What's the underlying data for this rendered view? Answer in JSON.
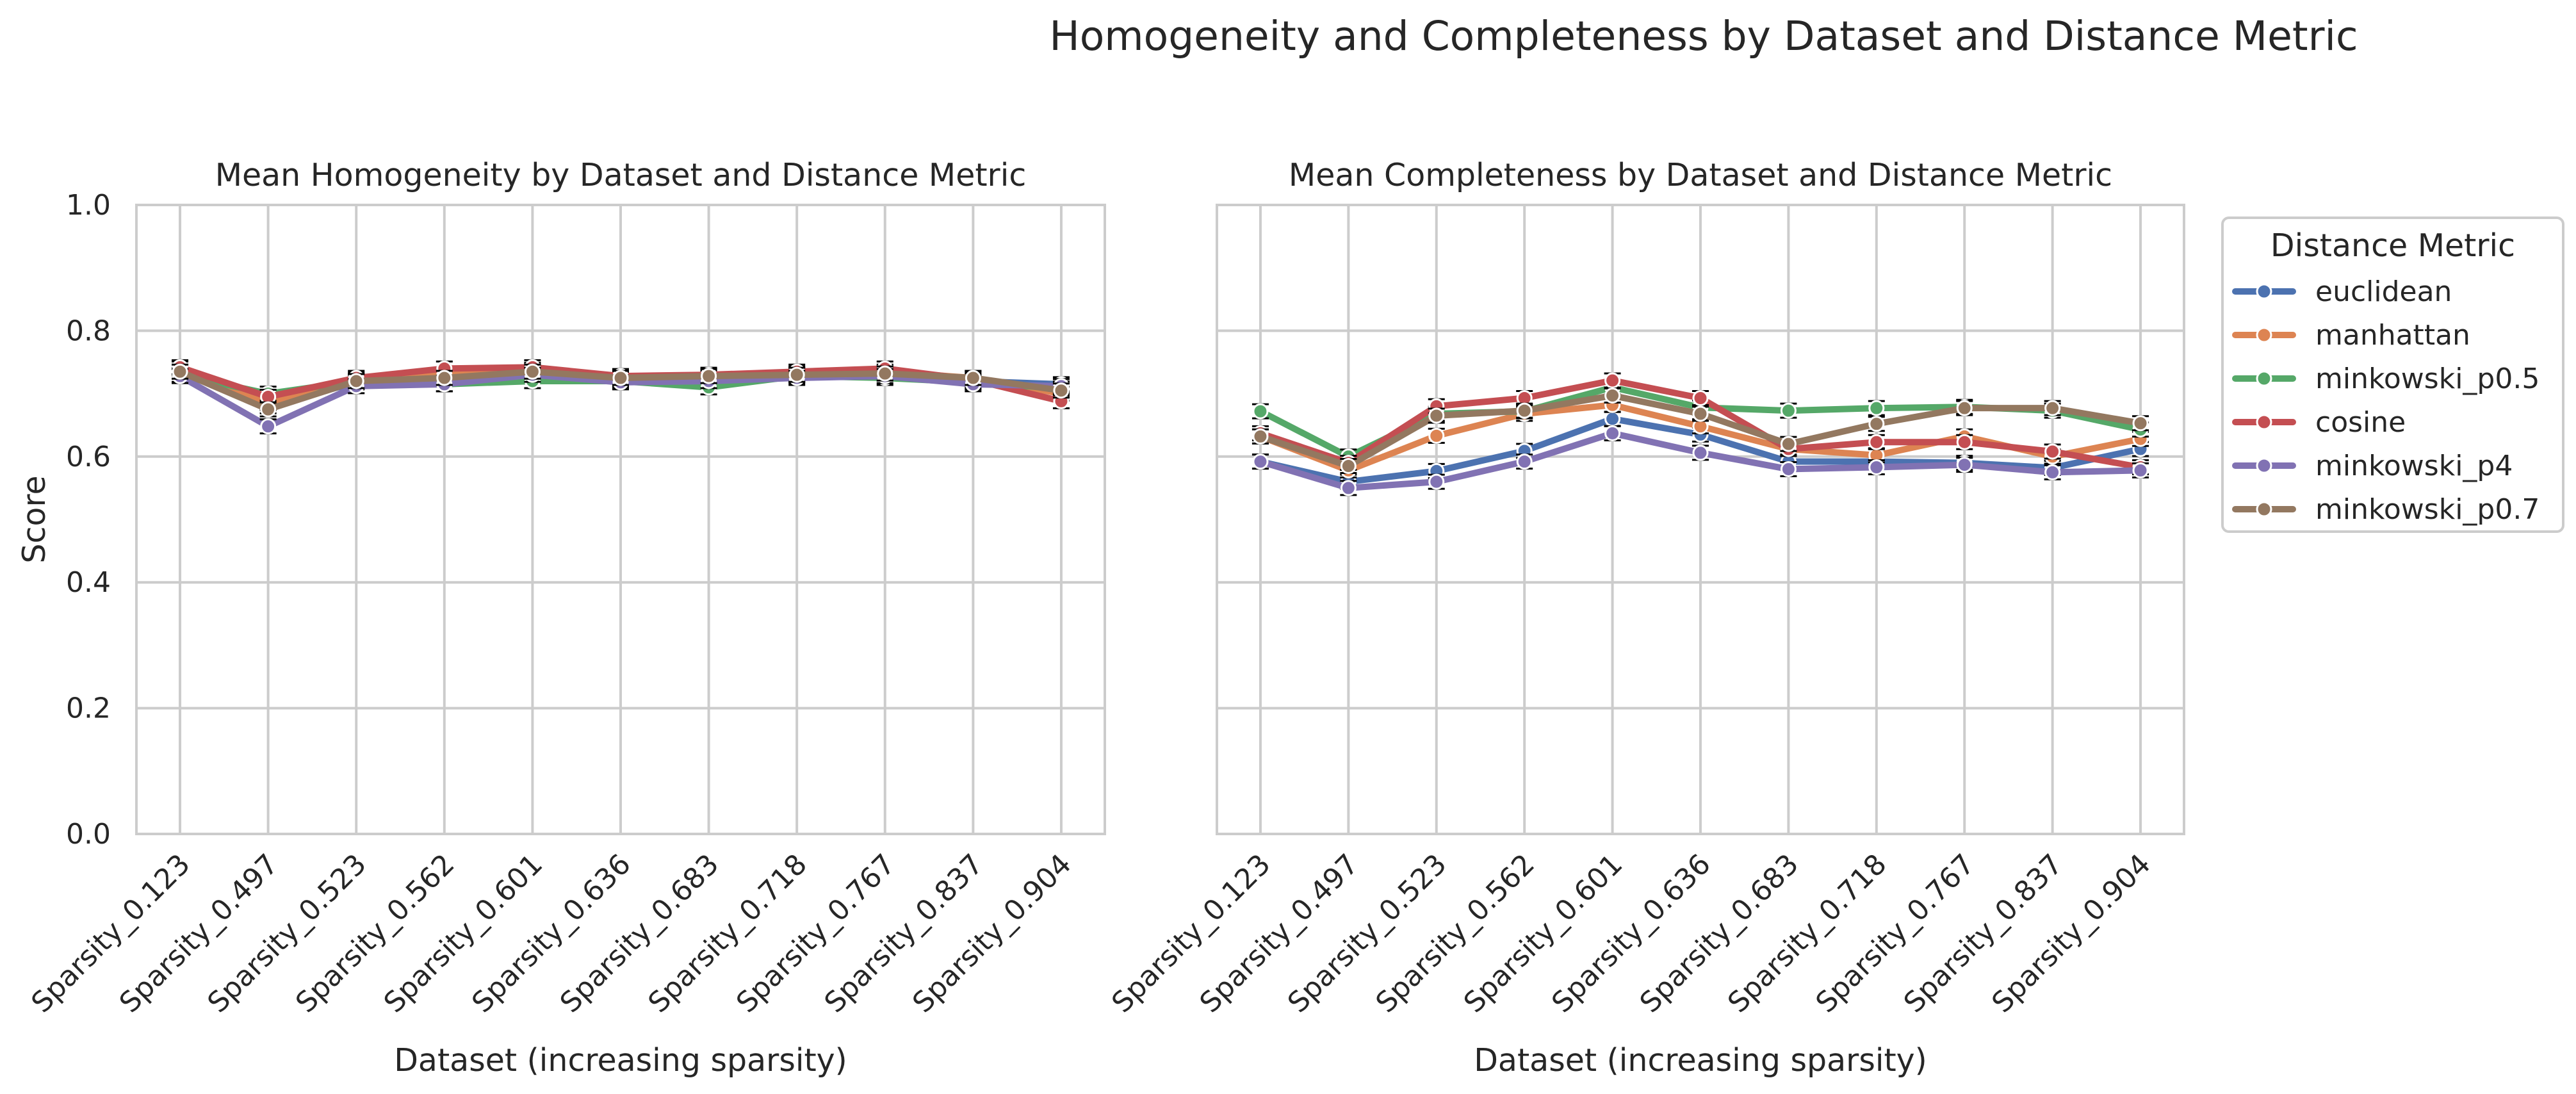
{
  "suptitle": "Homogeneity and Completeness by Dataset and Distance Metric",
  "colors": {
    "grid": "#cccccc",
    "frame": "#cccccc",
    "text": "#262626",
    "errorbar": "#000000"
  },
  "legend": {
    "title": "Distance Metric",
    "placement": "right, outside the second panel"
  },
  "chart_data": [
    {
      "type": "line",
      "title": "Mean Homogeneity by Dataset and Distance Metric",
      "xlabel": "Dataset (increasing sparsity)",
      "ylabel": "Score",
      "ylim": [
        0,
        1
      ],
      "yticks": [
        "0.0",
        "0.2",
        "0.4",
        "0.6",
        "0.8",
        "1.0"
      ],
      "grid": true,
      "categories": [
        "Sparsity_0.123",
        "Sparsity_0.497",
        "Sparsity_0.523",
        "Sparsity_0.562",
        "Sparsity_0.601",
        "Sparsity_0.636",
        "Sparsity_0.683",
        "Sparsity_0.718",
        "Sparsity_0.767",
        "Sparsity_0.837",
        "Sparsity_0.904"
      ],
      "series": [
        {
          "name": "euclidean",
          "color": "#4c72b0",
          "values": [
            0.735,
            0.68,
            0.718,
            0.725,
            0.735,
            0.722,
            0.725,
            0.73,
            0.732,
            0.72,
            0.715
          ]
        },
        {
          "name": "manhattan",
          "color": "#dd8452",
          "values": [
            0.74,
            0.685,
            0.722,
            0.73,
            0.738,
            0.725,
            0.728,
            0.732,
            0.735,
            0.725,
            0.7
          ]
        },
        {
          "name": "minkowski_p0.5",
          "color": "#55a868",
          "values": [
            0.73,
            0.7,
            0.72,
            0.715,
            0.72,
            0.72,
            0.71,
            0.728,
            0.725,
            0.718,
            0.708
          ]
        },
        {
          "name": "cosine",
          "color": "#c44e52",
          "values": [
            0.742,
            0.695,
            0.725,
            0.74,
            0.742,
            0.728,
            0.73,
            0.735,
            0.74,
            0.722,
            0.688
          ]
        },
        {
          "name": "minkowski_p4",
          "color": "#8172b3",
          "values": [
            0.728,
            0.648,
            0.712,
            0.715,
            0.73,
            0.718,
            0.72,
            0.725,
            0.728,
            0.715,
            0.712
          ]
        },
        {
          "name": "minkowski_p0.7",
          "color": "#937860",
          "values": [
            0.735,
            0.675,
            0.72,
            0.725,
            0.735,
            0.725,
            0.728,
            0.73,
            0.732,
            0.725,
            0.705
          ]
        }
      ]
    },
    {
      "type": "line",
      "title": "Mean Completeness by Dataset and Distance Metric",
      "xlabel": "Dataset (increasing sparsity)",
      "ylabel": "",
      "ylim": [
        0,
        1
      ],
      "grid": true,
      "categories": [
        "Sparsity_0.123",
        "Sparsity_0.497",
        "Sparsity_0.523",
        "Sparsity_0.562",
        "Sparsity_0.601",
        "Sparsity_0.636",
        "Sparsity_0.683",
        "Sparsity_0.718",
        "Sparsity_0.767",
        "Sparsity_0.837",
        "Sparsity_0.904"
      ],
      "series": [
        {
          "name": "euclidean",
          "color": "#4c72b0",
          "values": [
            0.592,
            0.56,
            0.577,
            0.609,
            0.66,
            0.635,
            0.592,
            0.592,
            0.59,
            0.582,
            0.612
          ]
        },
        {
          "name": "manhattan",
          "color": "#dd8452",
          "values": [
            0.632,
            0.578,
            0.633,
            0.668,
            0.682,
            0.648,
            0.612,
            0.602,
            0.632,
            0.6,
            0.628
          ]
        },
        {
          "name": "minkowski_p0.5",
          "color": "#55a868",
          "values": [
            0.672,
            0.6,
            0.668,
            0.672,
            0.71,
            0.678,
            0.673,
            0.677,
            0.679,
            0.673,
            0.643
          ]
        },
        {
          "name": "cosine",
          "color": "#c44e52",
          "values": [
            0.637,
            0.59,
            0.68,
            0.693,
            0.721,
            0.693,
            0.612,
            0.623,
            0.623,
            0.608,
            0.583
          ]
        },
        {
          "name": "minkowski_p4",
          "color": "#8172b3",
          "values": [
            0.592,
            0.55,
            0.56,
            0.592,
            0.637,
            0.606,
            0.58,
            0.583,
            0.587,
            0.575,
            0.578
          ]
        },
        {
          "name": "minkowski_p0.7",
          "color": "#937860",
          "values": [
            0.632,
            0.585,
            0.665,
            0.673,
            0.697,
            0.668,
            0.62,
            0.652,
            0.677,
            0.677,
            0.653
          ]
        }
      ]
    }
  ]
}
